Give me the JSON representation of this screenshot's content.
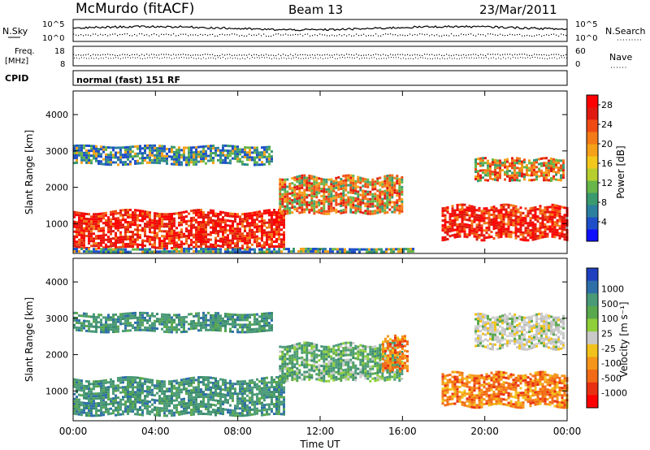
{
  "header": {
    "station": "McMurdo (fitACF)",
    "beam": "Beam 13",
    "date": "23/Mar/2011"
  },
  "status_panels": {
    "nsky_label": "N.Sky",
    "nsearch_label": "N.Search",
    "noise_ticks": [
      "10^5",
      "10^0"
    ],
    "freq_label": [
      "Freq.",
      "[MHz]"
    ],
    "freq_ticks": [
      "18",
      "8"
    ],
    "nave_label": "Nave",
    "nave_ticks": [
      "60",
      "0"
    ],
    "cpid_label": "CPID",
    "cpid_value": "normal (fast) 151 RF"
  },
  "chart_data": [
    {
      "type": "heatmap",
      "panel": "power",
      "xlabel": "Time UT",
      "ylabel": "Slant Range [km]",
      "x_ticks": [
        "00:00",
        "04:00",
        "08:00",
        "12:00",
        "16:00",
        "20:00",
        "00:00"
      ],
      "xlim_hours": [
        0,
        24
      ],
      "y_ticks": [
        1000,
        2000,
        3000,
        4000
      ],
      "ylim_km": [
        180,
        4650
      ],
      "colorbar": {
        "label": "Power [dB]",
        "ticks": [
          4,
          8,
          12,
          16,
          20,
          24,
          28
        ],
        "range": [
          0,
          30
        ],
        "colors": [
          "#1010ff",
          "#1e4fc8",
          "#2d7fa0",
          "#3a9a6e",
          "#69b74a",
          "#b6cf2e",
          "#f2c81c",
          "#f5a11a",
          "#f47a18",
          "#f04b14",
          "#e01a10",
          "#ff0000"
        ]
      },
      "patches": [
        {
          "t": [
            0.0,
            10.2
          ],
          "range_km": [
            350,
            1350
          ],
          "level": "high"
        },
        {
          "t": [
            10.0,
            16.0
          ],
          "range_km": [
            1300,
            2300
          ],
          "level": "medium"
        },
        {
          "t": [
            17.9,
            24.0
          ],
          "range_km": [
            600,
            1500
          ],
          "level": "high"
        },
        {
          "t": [
            19.5,
            23.8
          ],
          "range_km": [
            2200,
            2800
          ],
          "level": "medium"
        },
        {
          "t": [
            0.0,
            9.6
          ],
          "range_km": [
            2650,
            3150
          ],
          "level": "low"
        },
        {
          "t": [
            0.0,
            16.5
          ],
          "range_km": [
            200,
            330
          ],
          "level": "low"
        }
      ]
    },
    {
      "type": "heatmap",
      "panel": "velocity",
      "xlabel": "Time UT",
      "ylabel": "Slant Range [km]",
      "x_ticks": [
        "00:00",
        "04:00",
        "08:00",
        "12:00",
        "16:00",
        "20:00",
        "00:00"
      ],
      "xlim_hours": [
        0,
        24
      ],
      "y_ticks": [
        1000,
        2000,
        3000,
        4000
      ],
      "ylim_km": [
        180,
        4650
      ],
      "colorbar": {
        "label": "Velocity [m s⁻¹]",
        "tick_labels": [
          "1000",
          "500",
          "100",
          "25",
          "-25",
          "-100",
          "-500",
          "-1000"
        ],
        "colors": [
          "#1f3fbf",
          "#2f6fa8",
          "#4a9a78",
          "#5aa84e",
          "#8fd03a",
          "#c9c9c9",
          "#f2c21c",
          "#f5961a",
          "#f26a16",
          "#e83012",
          "#ff0000"
        ]
      },
      "patches": [
        {
          "t": [
            0.0,
            10.2
          ],
          "range_km": [
            350,
            1350
          ],
          "velocity": "100 to 500"
        },
        {
          "t": [
            10.0,
            16.0
          ],
          "range_km": [
            1300,
            2300
          ],
          "velocity": "25 to 500"
        },
        {
          "t": [
            15.0,
            16.2
          ],
          "range_km": [
            1600,
            2500
          ],
          "velocity": "-100 to -500"
        },
        {
          "t": [
            17.9,
            24.0
          ],
          "range_km": [
            600,
            1500
          ],
          "velocity": "-100 to -500"
        },
        {
          "t": [
            19.5,
            23.8
          ],
          "range_km": [
            2200,
            3100
          ],
          "velocity": "-25 to 25"
        },
        {
          "t": [
            0.0,
            9.6
          ],
          "range_km": [
            2650,
            3150
          ],
          "velocity": "100 to 500"
        }
      ]
    }
  ]
}
